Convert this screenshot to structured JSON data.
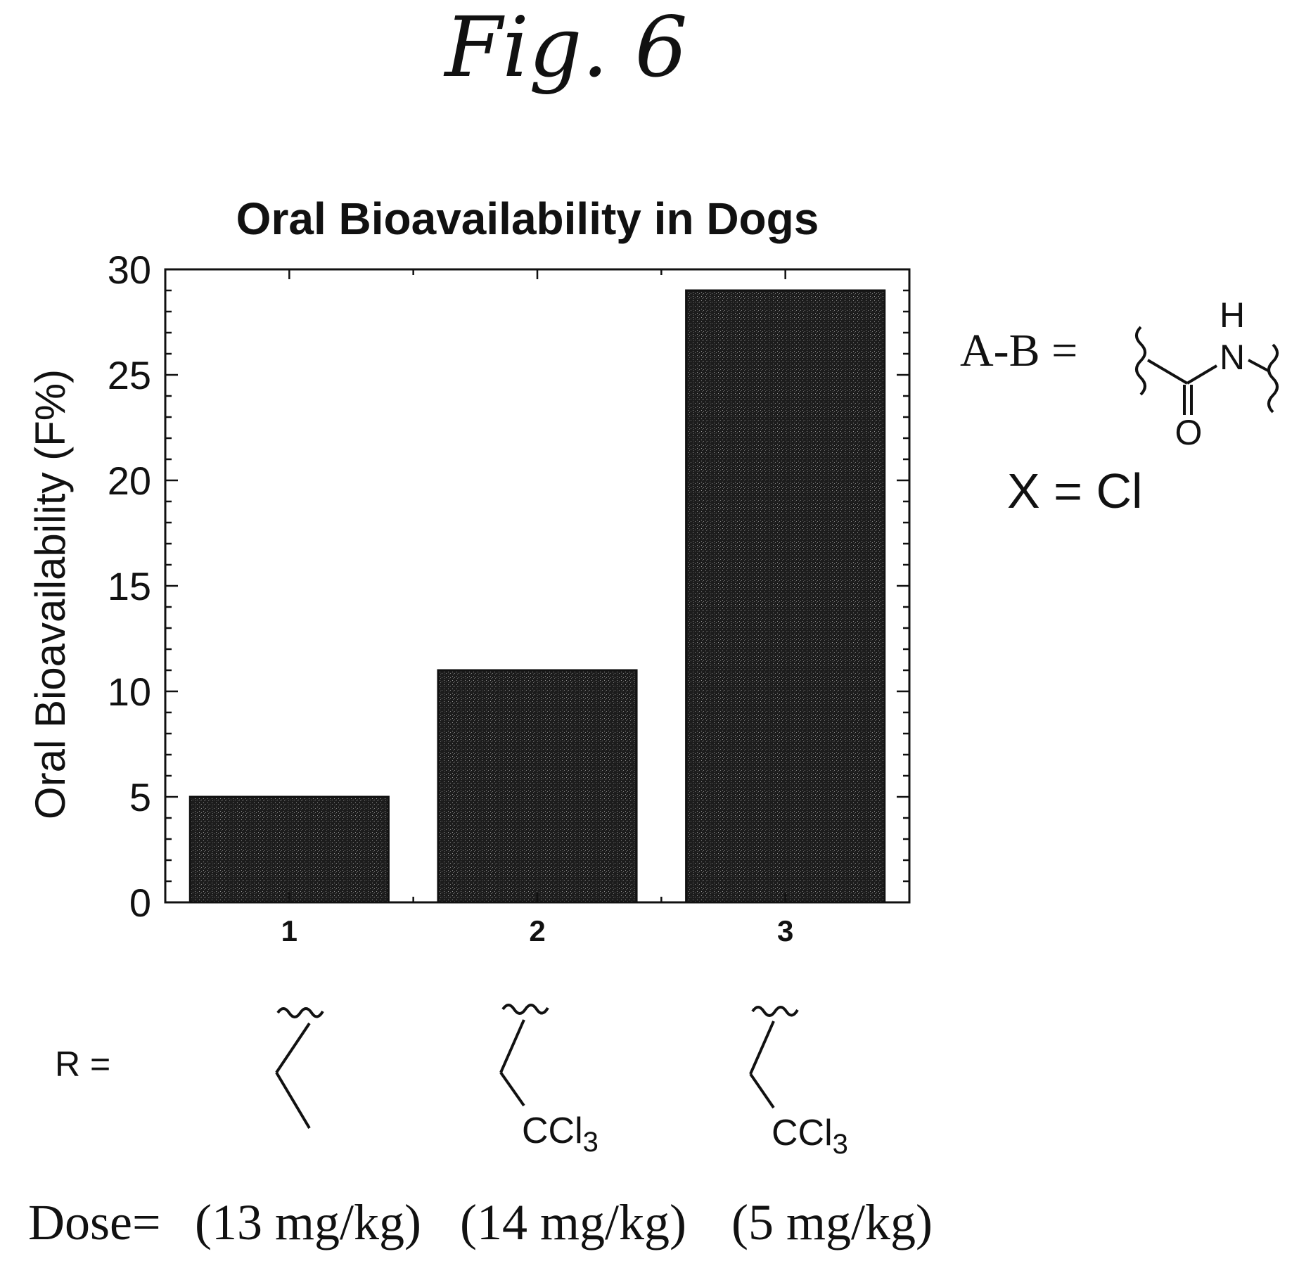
{
  "figure_label": "Fig. 6",
  "chart_data": {
    "type": "bar",
    "title": "Oral Bioavailability in Dogs",
    "xlabel": "",
    "ylabel": "Oral Bioavailability (F%)",
    "categories": [
      "1",
      "2",
      "3"
    ],
    "values": [
      5,
      11,
      29
    ],
    "ylim": [
      0,
      30
    ],
    "yticks": [
      "0",
      "5",
      "10",
      "15",
      "20",
      "25",
      "30"
    ],
    "grid": false,
    "bar_color": "#1c1c1c"
  },
  "scheme": {
    "ab_label": "A-B =",
    "nh_h": "H",
    "nh_n": "N",
    "carbonyl_o": "O",
    "x_label": "X = Cl",
    "r_label": "R =",
    "ccl3_main": "CCl",
    "ccl3_sub": "3",
    "dose_label": "Dose=",
    "doses": [
      "(13 mg/kg)",
      "(14 mg/kg)",
      "(5 mg/kg)"
    ]
  }
}
